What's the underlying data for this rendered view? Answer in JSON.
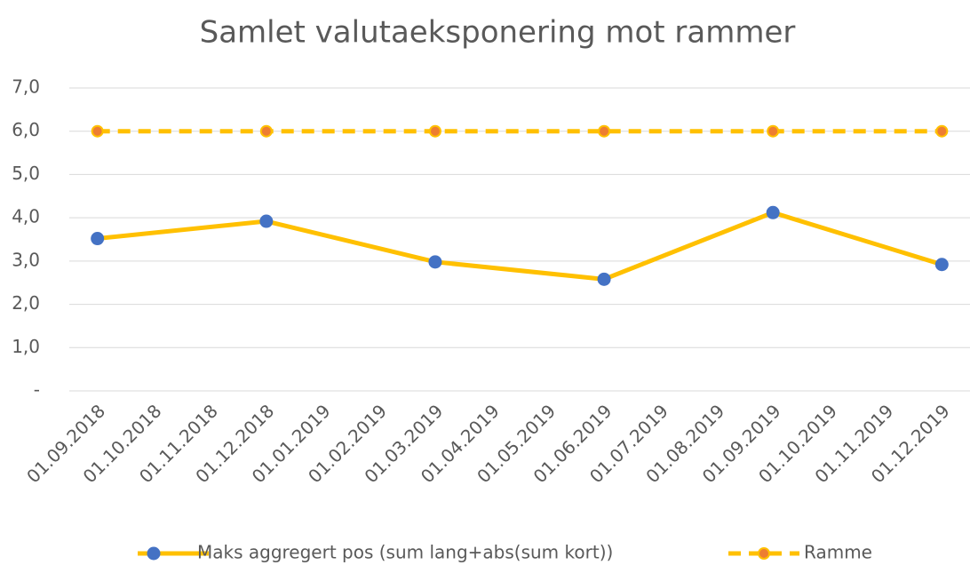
{
  "chart_data": {
    "type": "line",
    "title": "Samlet valutaeksponering mot rammer",
    "categories": [
      "01.09.2018",
      "01.10.2018",
      "01.11.2018",
      "01.12.2018",
      "01.01.2019",
      "01.02.2019",
      "01.03.2019",
      "01.04.2019",
      "01.05.2019",
      "01.06.2019",
      "01.07.2019",
      "01.08.2019",
      "01.09.2019",
      "01.10.2019",
      "01.11.2019",
      "01.12.2019"
    ],
    "series": [
      {
        "name": "Maks aggregert pos (sum lang+abs(sum kort))",
        "color": "#FFC000",
        "marker_color": "#4472C4",
        "dashed": false,
        "x": [
          "01.09.2018",
          "01.12.2018",
          "01.03.2019",
          "01.06.2019",
          "01.09.2019",
          "01.12.2019"
        ],
        "values": [
          3.52,
          3.92,
          2.98,
          2.58,
          4.12,
          2.92
        ]
      },
      {
        "name": "Ramme",
        "color": "#FFC000",
        "marker_color": "#ED7D31",
        "dashed": true,
        "x": [
          "01.09.2018",
          "01.12.2018",
          "01.03.2019",
          "01.06.2019",
          "01.09.2019",
          "01.12.2019"
        ],
        "values": [
          6,
          6,
          6,
          6,
          6,
          6
        ]
      }
    ],
    "ylim": [
      0,
      7
    ],
    "yticks": [
      {
        "value": 0,
        "label": "-"
      },
      {
        "value": 1,
        "label": "1,0"
      },
      {
        "value": 2,
        "label": "2,0"
      },
      {
        "value": 3,
        "label": "3,0"
      },
      {
        "value": 4,
        "label": "4,0"
      },
      {
        "value": 5,
        "label": "5,0"
      },
      {
        "value": 6,
        "label": "6,0"
      },
      {
        "value": 7,
        "label": "7,0"
      }
    ],
    "grid": true,
    "legend": "bottom"
  }
}
